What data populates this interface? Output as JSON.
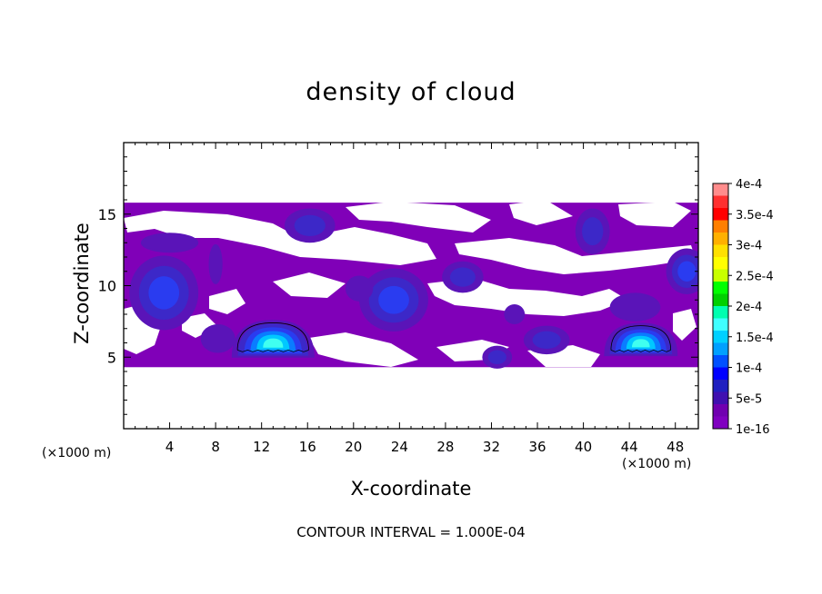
{
  "chart_data": {
    "type": "heatmap",
    "title": "density of cloud",
    "xlabel": "X-coordinate",
    "ylabel": "Z-coordinate",
    "x_unit_label": "(×1000 m)",
    "footer": "CONTOUR INTERVAL = 1.000E-04",
    "xlim": [
      0,
      50
    ],
    "ylim": [
      0,
      20
    ],
    "x_ticks": [
      4,
      8,
      12,
      16,
      20,
      24,
      28,
      32,
      36,
      40,
      44,
      48
    ],
    "y_ticks": [
      5,
      10,
      15
    ],
    "colorbar": {
      "labels": [
        "4e-4",
        "3.5e-4",
        "3e-4",
        "2.5e-4",
        "2e-4",
        "1.5e-4",
        "1e-4",
        "5e-5",
        "1e-16"
      ],
      "colors": [
        "#ff8c8c",
        "#ff3030",
        "#ff0000",
        "#ff7f00",
        "#ffb000",
        "#ffe000",
        "#ffff00",
        "#c8ff00",
        "#00ff00",
        "#00d000",
        "#00ffb0",
        "#40ffff",
        "#00d0ff",
        "#00a0ff",
        "#0050ff",
        "#0000ff",
        "#2020c0",
        "#4010b0",
        "#7000b0",
        "#8000c0"
      ]
    },
    "fields": {
      "background": "#8000b8",
      "layer1": "#5a14b8",
      "layer2": "#3c28c8",
      "layer3": "#2a3cf0",
      "layer4": "#0a7cff",
      "layer5": "#00c8ff",
      "layer6": "#40fff0"
    }
  }
}
